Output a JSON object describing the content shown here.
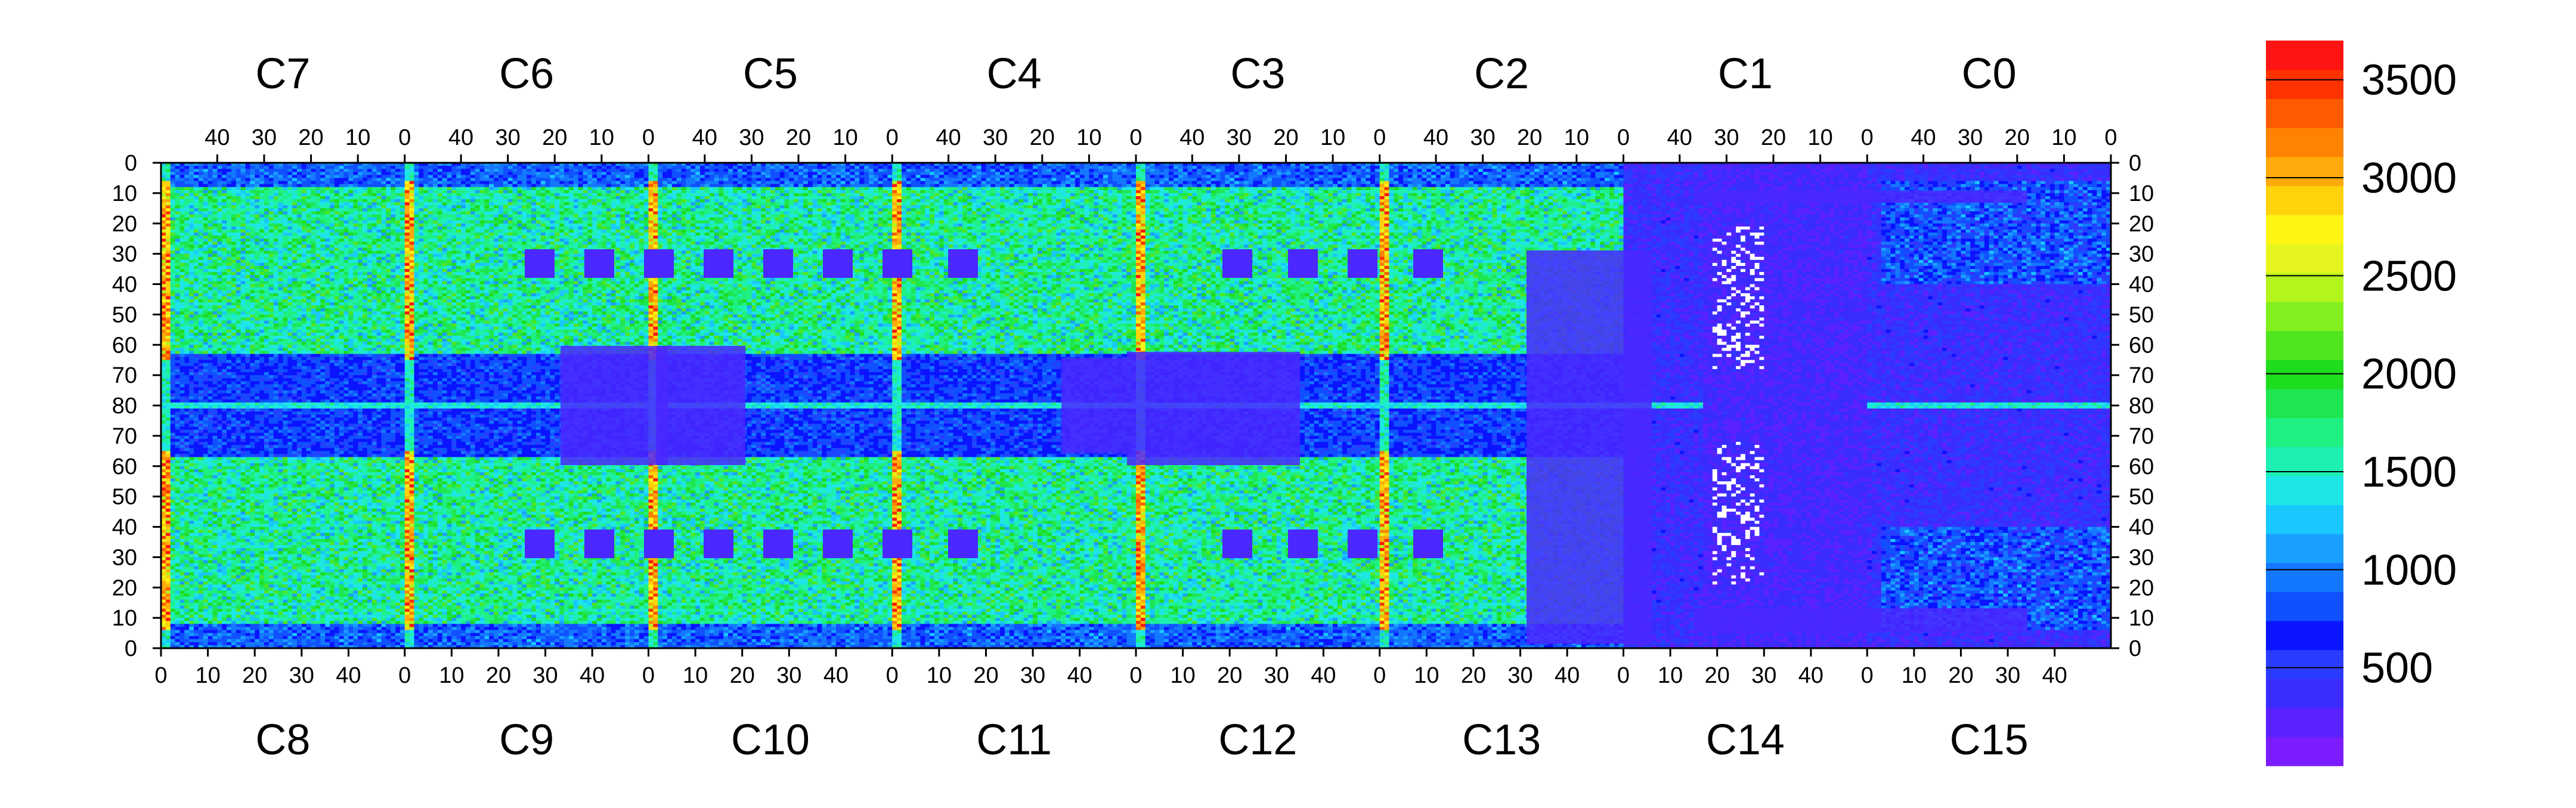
{
  "chart_data": {
    "type": "heatmap",
    "title": "",
    "xlabel": "",
    "ylabel": "",
    "chips_top": [
      "C7",
      "C6",
      "C5",
      "C4",
      "C3",
      "C2",
      "C1",
      "C0"
    ],
    "chips_bottom": [
      "C8",
      "C9",
      "C10",
      "C11",
      "C12",
      "C13",
      "C14",
      "C15"
    ],
    "x_ticks_top": [
      "40",
      "30",
      "20",
      "10",
      "0"
    ],
    "x_ticks_bottom": [
      "0",
      "10",
      "20",
      "30",
      "40"
    ],
    "y_ticks_top_half": [
      "0",
      "10",
      "20",
      "30",
      "40",
      "50",
      "60",
      "70",
      "80"
    ],
    "y_ticks_bottom_half": [
      "70",
      "60",
      "50",
      "40",
      "30",
      "20",
      "10",
      "0"
    ],
    "colorbar": {
      "ticks": [
        "500",
        "1000",
        "1500",
        "2000",
        "2500",
        "3000",
        "3500"
      ],
      "tick_values": [
        500,
        1000,
        1500,
        2000,
        2500,
        3000,
        3500
      ],
      "range": [
        0,
        3700
      ],
      "colors": [
        "#7a1cff",
        "#5a22ff",
        "#3a2cff",
        "#2a3cff",
        "#0a14ff",
        "#1050ff",
        "#1478ff",
        "#19a0ff",
        "#19c8ff",
        "#1ee6e6",
        "#1ef0b4",
        "#1ef082",
        "#1ee650",
        "#1edc1e",
        "#50e61e",
        "#82f01e",
        "#b4f51e",
        "#e6f51e",
        "#fff514",
        "#ffd20a",
        "#ffaa0a",
        "#ff8200",
        "#ff5a00",
        "#ff3200",
        "#ff1414"
      ]
    },
    "grid": false,
    "legend": "colorbar-right"
  }
}
